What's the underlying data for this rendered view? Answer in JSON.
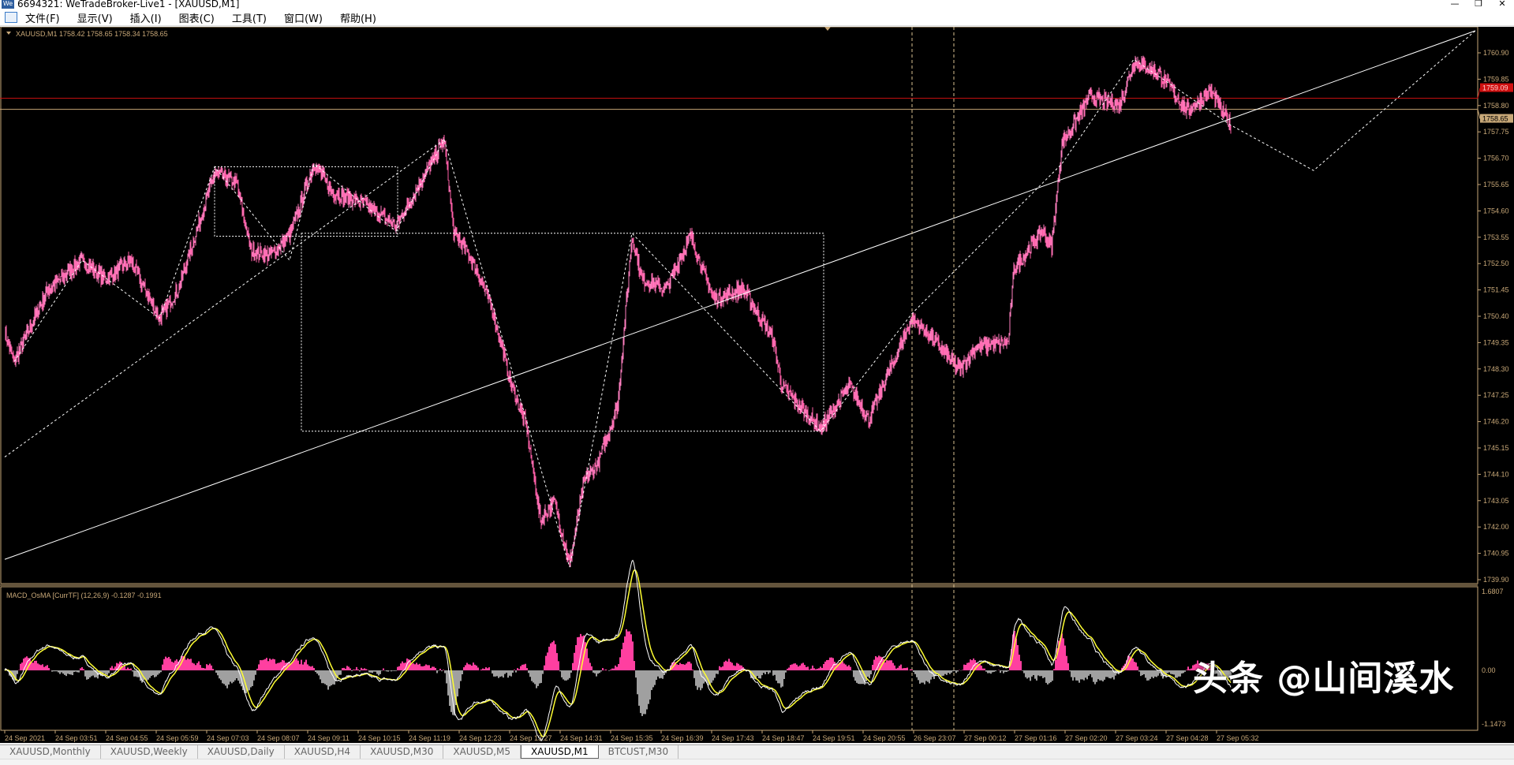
{
  "window": {
    "title": "6694321: WeTradeBroker-Live1 - [XAUUSD,M1]",
    "logo": "We",
    "controls": [
      "—",
      "❐",
      "✕"
    ]
  },
  "menu": [
    "文件(F)",
    "显示(V)",
    "插入(I)",
    "图表(C)",
    "工具(T)",
    "窗口(W)",
    "帮助(H)"
  ],
  "chart": {
    "header": "XAUUSD,M1  1758.42 1758.65 1758.34 1758.65",
    "macd_header": "MACD_OsMA [CurrTF] (12,26,9) -0.1287 -0.1991",
    "colors": {
      "candle": "#ff5fa8",
      "axis": "#c8a878",
      "bid_line": "#d01010",
      "ask_line": "#c8a878",
      "macd_line": "#ffffff",
      "signal_line": "#ffff33",
      "hist_up": "#ff3fa0",
      "hist_down": "#a0a0a0"
    }
  },
  "chart_data": {
    "type": "candlestick",
    "symbol": "XAUUSD",
    "timeframe": "M1",
    "ylim": [
      1739.9,
      1760.9
    ],
    "price_ticks": [
      "1760.90",
      "1759.85",
      "1758.80",
      "1757.75",
      "1756.70",
      "1755.65",
      "1754.60",
      "1753.55",
      "1752.50",
      "1751.45",
      "1750.40",
      "1749.35",
      "1748.30",
      "1747.25",
      "1746.20",
      "1745.15",
      "1744.10",
      "1743.05",
      "1742.00",
      "1740.95",
      "1739.90"
    ],
    "bid_price": "1759.09",
    "ask_price": "1758.65",
    "time_ticks": [
      "24 Sep 2021",
      "24 Sep 03:51",
      "24 Sep 04:55",
      "24 Sep 05:59",
      "24 Sep 07:03",
      "24 Sep 08:07",
      "24 Sep 09:11",
      "24 Sep 10:15",
      "24 Sep 11:19",
      "24 Sep 12:23",
      "24 Sep 13:27",
      "24 Sep 14:31",
      "24 Sep 15:35",
      "24 Sep 16:39",
      "24 Sep 17:43",
      "24 Sep 18:47",
      "24 Sep 19:51",
      "24 Sep 20:55",
      "26 Sep 23:07",
      "27 Sep 00:12",
      "27 Sep 01:16",
      "27 Sep 02:20",
      "27 Sep 03:24",
      "27 Sep 04:28",
      "27 Sep 05:32"
    ],
    "price_path": [
      [
        0,
        1749.75
      ],
      [
        12,
        1748.59
      ],
      [
        55,
        1751.48
      ],
      [
        98,
        1752.63
      ],
      [
        128,
        1751.86
      ],
      [
        159,
        1752.63
      ],
      [
        196,
        1750.32
      ],
      [
        220,
        1751.48
      ],
      [
        239,
        1753.4
      ],
      [
        266,
        1756.09
      ],
      [
        294,
        1755.71
      ],
      [
        312,
        1753.02
      ],
      [
        336,
        1752.82
      ],
      [
        361,
        1753.59
      ],
      [
        392,
        1756.48
      ],
      [
        416,
        1755.32
      ],
      [
        453,
        1754.94
      ],
      [
        496,
        1753.98
      ],
      [
        526,
        1755.71
      ],
      [
        557,
        1757.44
      ],
      [
        569,
        1753.79
      ],
      [
        593,
        1752.63
      ],
      [
        618,
        1750.71
      ],
      [
        642,
        1747.63
      ],
      [
        661,
        1746.09
      ],
      [
        679,
        1742.25
      ],
      [
        697,
        1743.02
      ],
      [
        716,
        1740.52
      ],
      [
        734,
        1743.79
      ],
      [
        752,
        1744.56
      ],
      [
        777,
        1746.86
      ],
      [
        795,
        1753.59
      ],
      [
        808,
        1751.86
      ],
      [
        838,
        1751.48
      ],
      [
        869,
        1753.59
      ],
      [
        899,
        1751.09
      ],
      [
        936,
        1751.48
      ],
      [
        973,
        1749.55
      ],
      [
        985,
        1747.63
      ],
      [
        1034,
        1745.9
      ],
      [
        1071,
        1747.63
      ],
      [
        1095,
        1746.29
      ],
      [
        1150,
        1750.32
      ],
      [
        1175,
        1749.55
      ],
      [
        1211,
        1748.21
      ],
      [
        1230,
        1749.17
      ],
      [
        1272,
        1749.36
      ],
      [
        1279,
        1752.25
      ],
      [
        1315,
        1753.79
      ],
      [
        1327,
        1753.21
      ],
      [
        1340,
        1757.25
      ],
      [
        1376,
        1759.17
      ],
      [
        1413,
        1758.79
      ],
      [
        1431,
        1760.52
      ],
      [
        1462,
        1760.13
      ],
      [
        1499,
        1758.59
      ],
      [
        1529,
        1759.36
      ],
      [
        1554,
        1758.02
      ]
    ],
    "macd": {
      "ticks": [
        "1.6807",
        "0.00",
        "-1.1473"
      ],
      "ylim": [
        -1.1473,
        1.6807
      ],
      "params": "12,26,9"
    },
    "drawings": {
      "trendline": [
        [
          0,
          1740.71
        ],
        [
          1864,
          1761.78
        ]
      ],
      "rectangles": [
        [
          [
            266,
            1756.36
          ],
          [
            498,
            1753.59
          ]
        ],
        [
          [
            376,
            1753.71
          ],
          [
            1038,
            1745.82
          ]
        ]
      ],
      "zigzag": [
        [
          12,
          1748.59
        ],
        [
          98,
          1752.63
        ],
        [
          196,
          1750.32
        ],
        [
          266,
          1756.36
        ],
        [
          361,
          1752.63
        ],
        [
          392,
          1756.48
        ],
        [
          496,
          1753.79
        ],
        [
          557,
          1757.44
        ],
        [
          716,
          1740.4
        ],
        [
          795,
          1753.71
        ],
        [
          1034,
          1745.82
        ],
        [
          1150,
          1750.51
        ],
        [
          1340,
          1756.48
        ],
        [
          1431,
          1760.64
        ],
        [
          1554,
          1758.02
        ],
        [
          1659,
          1756.21
        ],
        [
          1864,
          1761.78
        ]
      ],
      "long_dotted": [
        [
          0,
          1744.79
        ],
        [
          557,
          1757.44
        ]
      ],
      "vlines": [
        1150,
        1203
      ]
    }
  },
  "tabs": [
    "XAUUSD,Monthly",
    "XAUUSD,Weekly",
    "XAUUSD,Daily",
    "XAUUSD,H4",
    "XAUUSD,M30",
    "XAUUSD,M5",
    "XAUUSD,M1",
    "BTCUST,M30"
  ],
  "active_tab": "XAUUSD,M1",
  "watermark": "头条 @山间溪水"
}
